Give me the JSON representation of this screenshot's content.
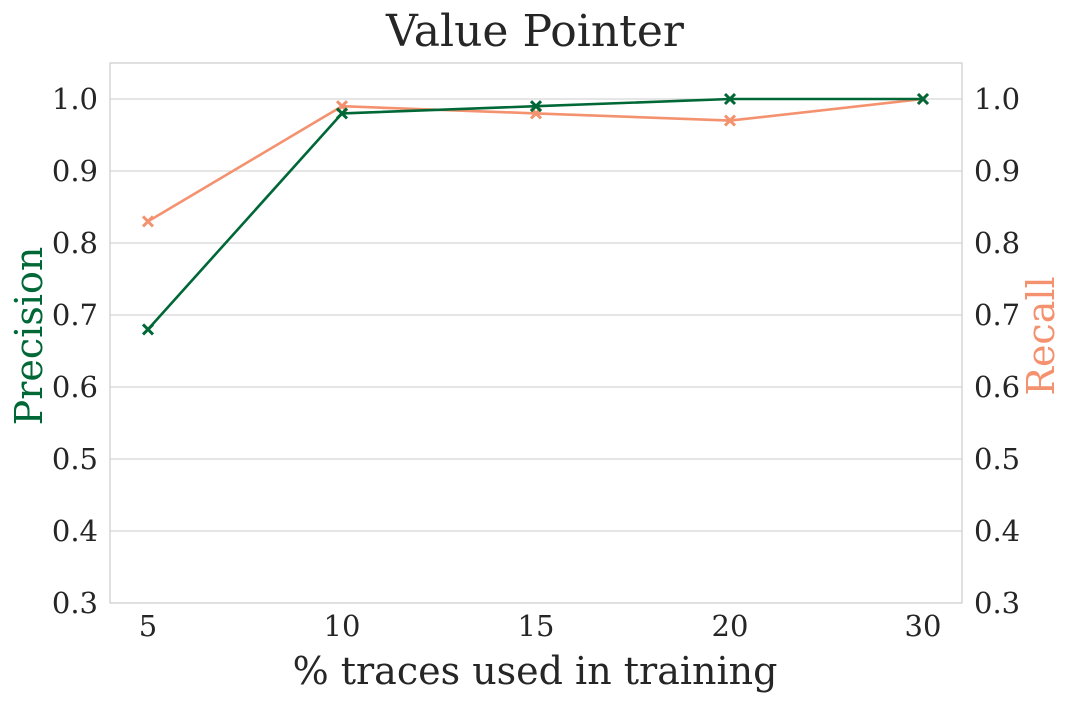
{
  "chart_data": {
    "type": "line",
    "title": "Value Pointer",
    "xlabel": "% traces used in training",
    "ylabel_left": "Precision",
    "ylabel_right": "Recall",
    "x_ticks": [
      "5",
      "10",
      "15",
      "20",
      "30"
    ],
    "y_ticks": [
      "0.3",
      "0.4",
      "0.5",
      "0.6",
      "0.7",
      "0.8",
      "0.9",
      "1.0"
    ],
    "ylim": [
      0.3,
      1.05
    ],
    "grid": "horizontal",
    "series": [
      {
        "name": "Precision",
        "axis": "left",
        "color": "#006837",
        "marker": "x",
        "values": [
          0.68,
          0.98,
          0.99,
          1.0,
          1.0
        ]
      },
      {
        "name": "Recall",
        "axis": "right",
        "color": "#f4926f",
        "marker": "x",
        "values": [
          0.83,
          0.99,
          0.98,
          0.97,
          1.0
        ]
      }
    ]
  }
}
